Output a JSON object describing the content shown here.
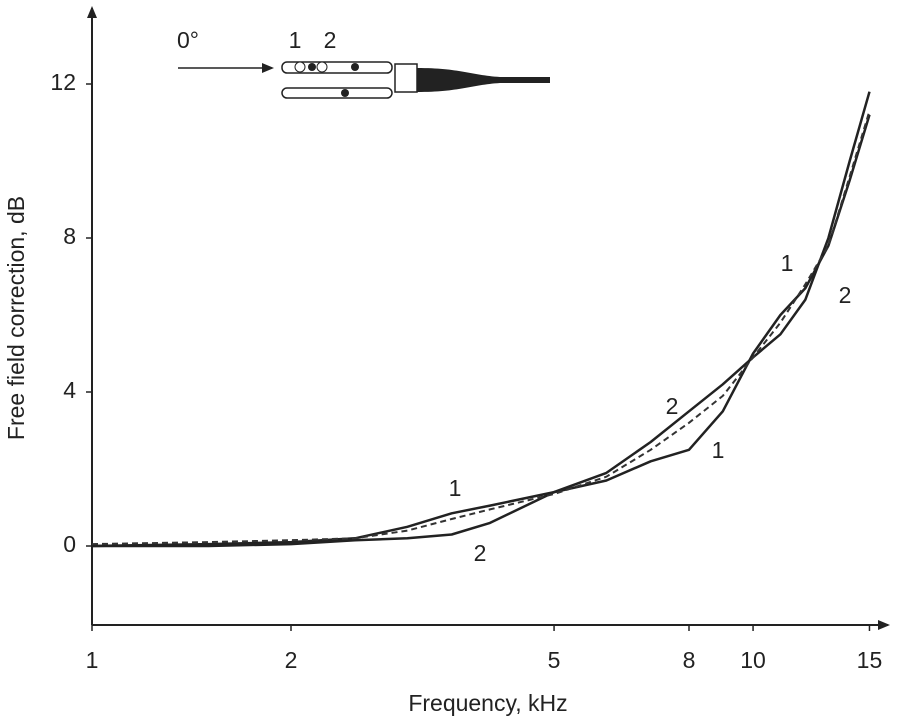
{
  "chart_data": {
    "type": "line",
    "x_label": "Frequency, kHz",
    "y_label": "Free field correction, dB",
    "xscale": "log",
    "xlim": [
      1,
      16
    ],
    "xticks": [
      1,
      2,
      5,
      8,
      10,
      15
    ],
    "ylim": [
      -2,
      14
    ],
    "yticks": [
      0,
      4,
      8,
      12
    ],
    "x": [
      1,
      1.5,
      2,
      2.5,
      3,
      3.5,
      4,
      5,
      6,
      7,
      8,
      9,
      10,
      11,
      12,
      13,
      14,
      15
    ],
    "series": [
      {
        "name": "1",
        "color": "#222",
        "dash": false,
        "values": [
          0,
          0.05,
          0.1,
          0.2,
          0.5,
          0.85,
          1.05,
          1.4,
          1.7,
          2.2,
          2.5,
          3.5,
          5.0,
          6.0,
          6.7,
          7.8,
          9.5,
          11.2
        ]
      },
      {
        "name": "2",
        "color": "#222",
        "dash": false,
        "values": [
          0,
          0.0,
          0.05,
          0.15,
          0.2,
          0.3,
          0.6,
          1.4,
          1.9,
          2.7,
          3.5,
          4.2,
          4.9,
          5.5,
          6.4,
          8.0,
          10.0,
          11.8
        ]
      },
      {
        "color": "#333",
        "dash": true,
        "values": [
          0.05,
          0.1,
          0.15,
          0.2,
          0.4,
          0.7,
          0.95,
          1.35,
          1.8,
          2.5,
          3.2,
          3.9,
          4.9,
          5.8,
          6.8,
          7.8,
          9.6,
          11.3
        ]
      }
    ],
    "inset": {
      "angle_label": "0°",
      "labels": [
        "1",
        "2"
      ]
    }
  }
}
